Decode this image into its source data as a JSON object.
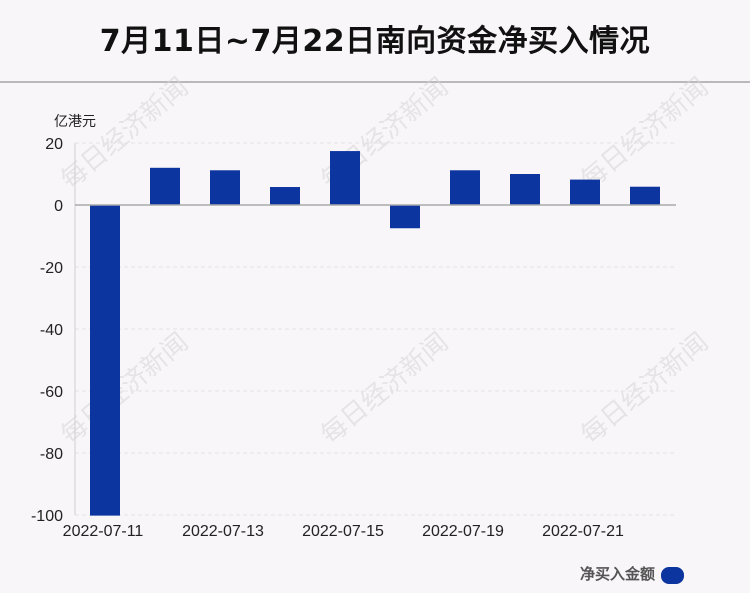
{
  "chart_data": {
    "type": "bar",
    "title": "7月11日~7月22日南向资金净买入情况",
    "unit": "亿港元",
    "categories": [
      "2022-07-11",
      "2022-07-12",
      "2022-07-13",
      "2022-07-14",
      "2022-07-15",
      "2022-07-18",
      "2022-07-19",
      "2022-07-20",
      "2022-07-21",
      "2022-07-22"
    ],
    "x_tick_labels": [
      "2022-07-11",
      "2022-07-13",
      "2022-07-15",
      "2022-07-19",
      "2022-07-21"
    ],
    "series": [
      {
        "name": "净买入金额",
        "color": "#0d35a0",
        "values": [
          -100.2,
          12.0,
          11.2,
          5.8,
          17.4,
          -7.5,
          11.2,
          10.0,
          8.2,
          5.9
        ]
      }
    ],
    "ylim": [
      -100,
      20
    ],
    "yticks": [
      20,
      0,
      -20,
      -40,
      -60,
      -80,
      -100
    ],
    "grid": true,
    "legend_position": "bottom-right"
  },
  "watermark": "每日经济新闻"
}
